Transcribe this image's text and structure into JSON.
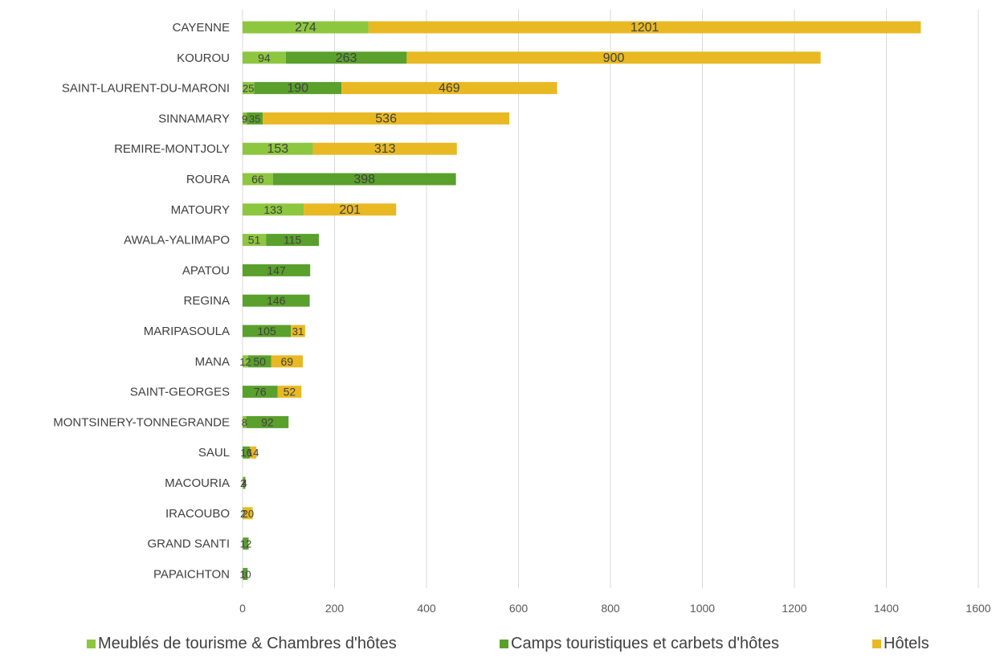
{
  "chart_data": {
    "type": "bar",
    "orientation": "horizontal",
    "stacked": true,
    "title": "",
    "xlabel": "",
    "ylabel": "",
    "xlim": [
      0,
      1600
    ],
    "x_ticks": [
      "0",
      "200",
      "400",
      "600",
      "800",
      "1000",
      "1200",
      "1400",
      "1600"
    ],
    "grid": true,
    "legend_position": "bottom",
    "categories": [
      "CAYENNE",
      "KOUROU",
      "SAINT-LAURENT-DU-MARONI",
      "SINNAMARY",
      "REMIRE-MONTJOLY",
      "ROURA",
      "MATOURY",
      "AWALA-YALIMAPO",
      "APATOU",
      "REGINA",
      "MARIPASOULA",
      "MANA",
      "SAINT-GEORGES",
      "MONTSINERY-TONNEGRANDE",
      "SAUL",
      "MACOURIA",
      "IRACOUBO",
      "GRAND SANTI",
      "PAPAICHTON"
    ],
    "series": [
      {
        "name": "Meublés de tourisme & Chambres d'hôtes",
        "color": "#8dc63f",
        "values": [
          274,
          94,
          25,
          9,
          153,
          66,
          133,
          51,
          null,
          null,
          null,
          12,
          null,
          8,
          null,
          2,
          2,
          1,
          1
        ]
      },
      {
        "name": "Camps touristiques et carbets d'hôtes",
        "color": "#5aa02c",
        "values": [
          null,
          263,
          190,
          35,
          null,
          398,
          null,
          115,
          147,
          146,
          105,
          50,
          76,
          92,
          16,
          4,
          null,
          12,
          10
        ]
      },
      {
        "name": "Hôtels",
        "color": "#e8b923",
        "values": [
          1201,
          900,
          469,
          536,
          313,
          null,
          201,
          null,
          null,
          null,
          31,
          69,
          52,
          null,
          14,
          null,
          20,
          null,
          null
        ]
      }
    ]
  }
}
